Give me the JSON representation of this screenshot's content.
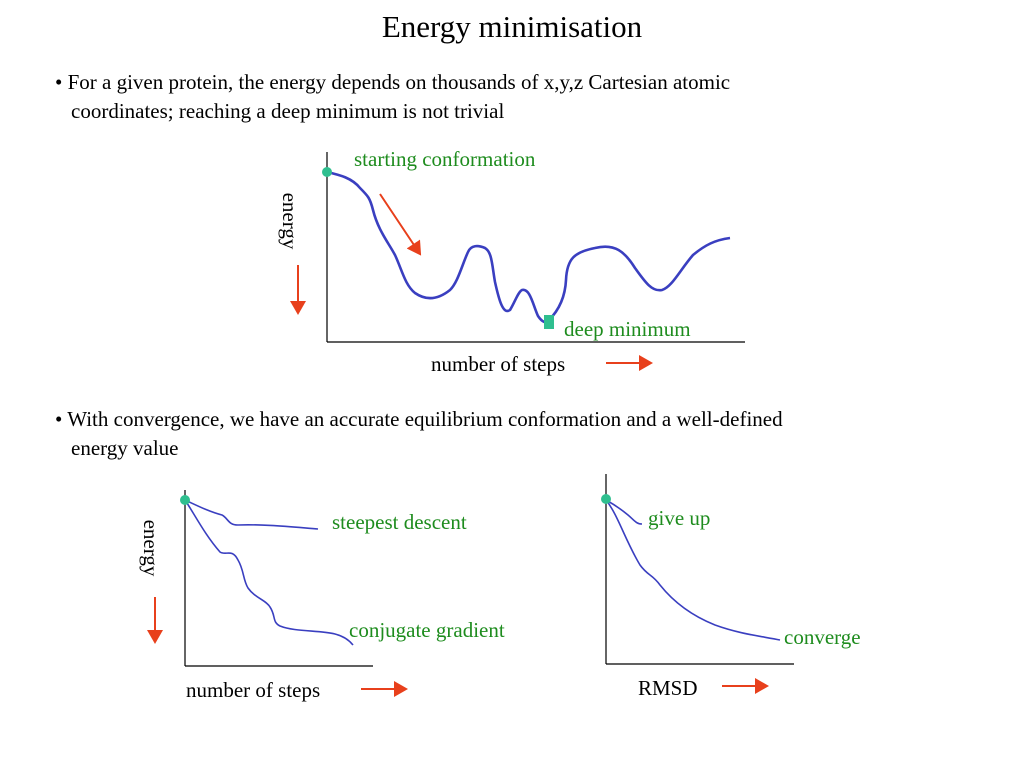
{
  "slide": {
    "title": "Energy minimisation",
    "bullet1": {
      "line1": "• For a given protein, the energy depends on thousands of x,y,z Cartesian atomic",
      "line2": "coordinates; reaching a deep minimum is not trivial"
    },
    "bullet2": {
      "line1": "• With convergence, we have an accurate equilibrium conformation and a well-defined",
      "line2": "energy value"
    }
  },
  "graph1": {
    "ylabel": "energy",
    "xlabel": "number of steps",
    "start_label": "starting conformation",
    "minimum_label": "deep minimum"
  },
  "graph2": {
    "ylabel": "energy",
    "xlabel": "number of steps",
    "curve1_label": "steepest descent",
    "curve2_label": "conjugate gradient"
  },
  "graph3": {
    "xlabel": "RMSD",
    "curve1_label": "give up",
    "curve2_label": "converge"
  },
  "colors": {
    "curve": "#3a3fc0",
    "annotation_text": "#1e8c1e",
    "arrow": "#e8401c",
    "marker": "#2fbf8f",
    "axis": "#000000"
  }
}
